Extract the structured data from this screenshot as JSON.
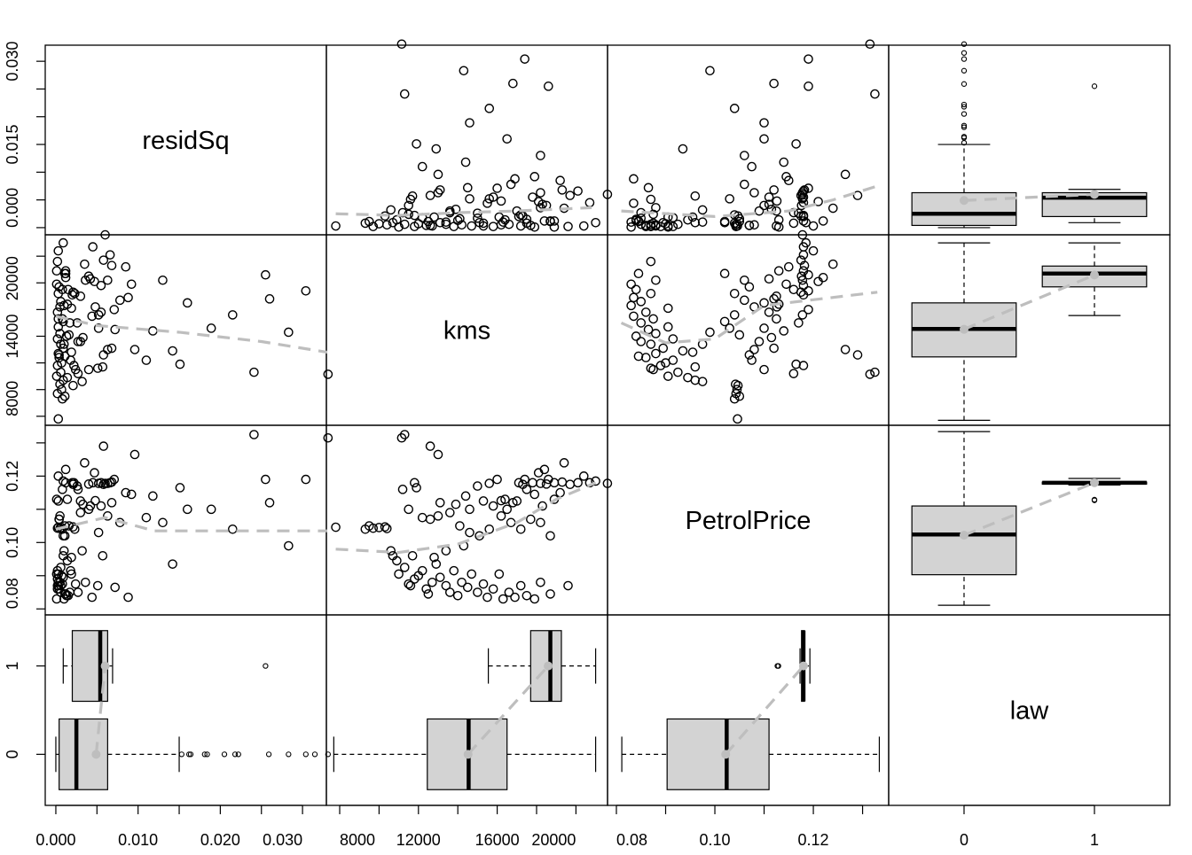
{
  "chart_data": {
    "type": "scatter",
    "variables": [
      "residSq",
      "kms",
      "PetrolPrice",
      "law"
    ],
    "diagonal_labels": [
      "residSq",
      "kms",
      "PetrolPrice",
      "law"
    ],
    "ranges": [
      [
        -0.00129,
        0.0329
      ],
      [
        7324,
        21604
      ],
      [
        0.0782,
        0.1353
      ],
      [
        -0.578,
        1.578
      ]
    ],
    "axes": [
      {
        "ticks": [
          0,
          0.005,
          0.01,
          0.015,
          0.02,
          0.025,
          0.03
        ],
        "y_labels": [
          {
            "v": 0,
            "t": "0.000"
          },
          {
            "v": 0.015,
            "t": "0.015"
          },
          {
            "v": 0.03,
            "t": "0.030"
          }
        ],
        "x_labels": [
          {
            "v": 0,
            "t": "0.000"
          },
          {
            "v": 0.01,
            "t": "0.010"
          },
          {
            "v": 0.02,
            "t": "0.020"
          },
          {
            "v": 0.03,
            "t": "0.030"
          }
        ]
      },
      {
        "ticks": [
          8000,
          10000,
          12000,
          14000,
          16000,
          18000,
          20000
        ],
        "y_labels": [
          {
            "v": 8000,
            "t": "8000"
          },
          {
            "v": 14000,
            "t": "14000"
          },
          {
            "v": 20000,
            "t": "20000"
          }
        ],
        "x_labels": [
          {
            "v": 8000,
            "t": "8000"
          },
          {
            "v": 12000,
            "t": "12000"
          },
          {
            "v": 16000,
            "t": "16000"
          },
          {
            "v": 20000,
            "t": "20000"
          }
        ]
      },
      {
        "ticks": [
          0.08,
          0.09,
          0.1,
          0.11,
          0.12,
          0.13
        ],
        "y_labels": [
          {
            "v": 0.08,
            "t": "0.08"
          },
          {
            "v": 0.1,
            "t": "0.10"
          },
          {
            "v": 0.12,
            "t": "0.12"
          }
        ],
        "x_labels": [
          {
            "v": 0.08,
            "t": "0.08"
          },
          {
            "v": 0.1,
            "t": "0.10"
          },
          {
            "v": 0.12,
            "t": "0.12"
          }
        ]
      },
      {
        "ticks": [
          0,
          1
        ],
        "y_labels": [
          {
            "v": 0,
            "t": "0"
          },
          {
            "v": 1,
            "t": "1"
          }
        ],
        "x_labels": [
          {
            "v": 0,
            "t": "0"
          },
          {
            "v": 1,
            "t": "1"
          }
        ]
      }
    ],
    "records": [
      [
        0.0003,
        7800,
        0.1046,
        0
      ],
      [
        0.0008,
        9300,
        0.104,
        0
      ],
      [
        0.0011,
        9500,
        0.105,
        0
      ],
      [
        0.0002,
        9700,
        0.1043,
        0
      ],
      [
        0.0021,
        10300,
        0.1047,
        0
      ],
      [
        0.0005,
        10400,
        0.1042,
        0
      ],
      [
        0.0032,
        10600,
        0.0975,
        0
      ],
      [
        0.0009,
        10700,
        0.096,
        0
      ],
      [
        0.0014,
        10900,
        0.0945,
        0
      ],
      [
        0.0001,
        11000,
        0.0905,
        0
      ],
      [
        0.0006,
        11300,
        0.0925,
        0
      ],
      [
        0.0024,
        11500,
        0.0875,
        0
      ],
      [
        0.0051,
        11600,
        0.087,
        0
      ],
      [
        0.0002,
        11800,
        0.089,
        0
      ],
      [
        0.0007,
        12000,
        0.09,
        0
      ],
      [
        0.0018,
        12200,
        0.0915,
        0
      ],
      [
        0.0004,
        12400,
        0.086,
        0
      ],
      [
        0.0011,
        12500,
        0.0845,
        0
      ],
      [
        0.0003,
        12700,
        0.088,
        0
      ],
      [
        0.0142,
        12900,
        0.0935,
        0
      ],
      [
        0.0009,
        13100,
        0.0895,
        0
      ],
      [
        0.0006,
        13400,
        0.087,
        0
      ],
      [
        0.0027,
        13600,
        0.085,
        0
      ],
      [
        0.0002,
        13800,
        0.0915,
        0
      ],
      [
        0.0013,
        14000,
        0.084,
        0
      ],
      [
        0.0005,
        14200,
        0.088,
        0
      ],
      [
        0.0072,
        14500,
        0.0865,
        0
      ],
      [
        0.0003,
        14700,
        0.0905,
        0
      ],
      [
        0.0017,
        15000,
        0.085,
        0
      ],
      [
        0.0008,
        15300,
        0.0875,
        0
      ],
      [
        0.0044,
        15500,
        0.0835,
        0
      ],
      [
        0.0002,
        15800,
        0.086,
        0
      ],
      [
        0.0019,
        16100,
        0.0905,
        0
      ],
      [
        0.001,
        16300,
        0.083,
        0
      ],
      [
        0.0006,
        16600,
        0.085,
        0
      ],
      [
        0.0088,
        16900,
        0.0835,
        0
      ],
      [
        0.0003,
        17200,
        0.087,
        0
      ],
      [
        0.0015,
        17500,
        0.084,
        0
      ],
      [
        0.0001,
        17900,
        0.083,
        0
      ],
      [
        0.0036,
        18200,
        0.088,
        0
      ],
      [
        0.0012,
        18700,
        0.0845,
        0
      ],
      [
        0.0241,
        11300,
        0.1325,
        0
      ],
      [
        0.0331,
        11150,
        0.1315,
        0
      ],
      [
        0.0058,
        12600,
        0.129,
        0
      ],
      [
        0.0096,
        13000,
        0.1265,
        0
      ],
      [
        0.0022,
        11800,
        0.118,
        0
      ],
      [
        0.0151,
        11900,
        0.1165,
        0
      ],
      [
        0.004,
        11500,
        0.11,
        0
      ],
      [
        0.0027,
        11200,
        0.116,
        0
      ],
      [
        0.0007,
        10000,
        0.1045,
        0
      ],
      [
        0.011,
        12200,
        0.1075,
        0
      ],
      [
        0.0063,
        13000,
        0.108,
        0
      ],
      [
        0.003,
        13600,
        0.109,
        0
      ],
      [
        0.0016,
        14100,
        0.105,
        0
      ],
      [
        0.0052,
        14600,
        0.103,
        0
      ],
      [
        0.0009,
        15100,
        0.102,
        0
      ],
      [
        0.0215,
        15600,
        0.104,
        0
      ],
      [
        0.0005,
        16200,
        0.108,
        0
      ],
      [
        0.0078,
        16700,
        0.106,
        0
      ],
      [
        0.0023,
        17200,
        0.104,
        0
      ],
      [
        0.0004,
        17700,
        0.107,
        0
      ],
      [
        0.013,
        18200,
        0.106,
        0
      ],
      [
        0.0011,
        18700,
        0.102,
        0
      ],
      [
        0.0068,
        13100,
        0.112,
        0
      ],
      [
        0.0033,
        13900,
        0.1115,
        0
      ],
      [
        0.0189,
        14600,
        0.11,
        0
      ],
      [
        0.0003,
        15300,
        0.1125,
        0
      ],
      [
        0.0055,
        15800,
        0.111,
        0
      ],
      [
        0.0014,
        16400,
        0.113,
        0
      ],
      [
        0.026,
        16800,
        0.112,
        0
      ],
      [
        0.002,
        17100,
        0.118,
        0
      ],
      [
        0.0008,
        17500,
        0.116,
        0
      ],
      [
        0.0092,
        17900,
        0.1145,
        0
      ],
      [
        0.0042,
        18300,
        0.111,
        0
      ],
      [
        0.0001,
        18900,
        0.113,
        0
      ],
      [
        0.0118,
        14400,
        0.114,
        0
      ],
      [
        0.0026,
        15000,
        0.117,
        0
      ],
      [
        0.0071,
        16000,
        0.119,
        0
      ],
      [
        0.0304,
        17400,
        0.119,
        0
      ],
      [
        0.0047,
        18100,
        0.121,
        0
      ],
      [
        0.0012,
        18400,
        0.122,
        0
      ],
      [
        0.0085,
        19200,
        0.115,
        0
      ],
      [
        0.0035,
        19400,
        0.124,
        0
      ],
      [
        0.016,
        16500,
        0.11,
        0
      ],
      [
        0.0004,
        12600,
        0.107,
        0
      ],
      [
        0.0057,
        11700,
        0.096,
        0
      ],
      [
        0.0019,
        12800,
        0.0955,
        0
      ],
      [
        0.001,
        13400,
        0.0975,
        0
      ],
      [
        0.0283,
        14300,
        0.099,
        0
      ],
      [
        0.0002,
        19600,
        0.087,
        0
      ],
      [
        0.0003,
        20400,
        0.12,
        0
      ],
      [
        0.0045,
        20700,
        0.118,
        0
      ],
      [
        0.0021,
        17300,
        0.1175,
        1
      ],
      [
        0.0055,
        17800,
        0.118,
        1
      ],
      [
        0.0063,
        18200,
        0.1178,
        1
      ],
      [
        0.004,
        18500,
        0.1176,
        1
      ],
      [
        0.0012,
        18900,
        0.118,
        1
      ],
      [
        0.0068,
        19300,
        0.1182,
        1
      ],
      [
        0.0058,
        19700,
        0.1175,
        1
      ],
      [
        0.0255,
        18600,
        0.119,
        1
      ],
      [
        0.003,
        17000,
        0.1125,
        1
      ],
      [
        0.0048,
        16200,
        0.1126,
        1
      ],
      [
        0.0066,
        20100,
        0.118,
        1
      ],
      [
        0.0009,
        21000,
        0.1185,
        1
      ],
      [
        0.006,
        21600,
        0.1178,
        1
      ],
      [
        0.0052,
        15600,
        0.1178,
        1
      ]
    ],
    "smoothers": {
      "0-1": [
        [
          7800,
          0.0025
        ],
        [
          11000,
          0.0022
        ],
        [
          14000,
          0.0027
        ],
        [
          17000,
          0.003
        ],
        [
          20800,
          0.0036
        ]
      ],
      "0-2": [
        [
          0.081,
          0.003
        ],
        [
          0.1,
          0.002
        ],
        [
          0.115,
          0.003
        ],
        [
          0.124,
          0.005
        ],
        [
          0.133,
          0.0075
        ]
      ],
      "1-0": [
        [
          0,
          15500
        ],
        [
          0.005,
          14800
        ],
        [
          0.015,
          14300
        ],
        [
          0.025,
          13600
        ],
        [
          0.033,
          12800
        ]
      ],
      "1-2": [
        [
          0.081,
          15000
        ],
        [
          0.09,
          13500
        ],
        [
          0.1,
          13800
        ],
        [
          0.11,
          16300
        ],
        [
          0.133,
          17300
        ]
      ],
      "2-0": [
        [
          0,
          0.104
        ],
        [
          0.006,
          0.1075
        ],
        [
          0.012,
          0.1035
        ],
        [
          0.033,
          0.1035
        ]
      ],
      "2-1": [
        [
          7800,
          0.098
        ],
        [
          11000,
          0.097
        ],
        [
          14000,
          0.0995
        ],
        [
          17000,
          0.106
        ],
        [
          19000,
          0.113
        ],
        [
          21000,
          0.118
        ]
      ]
    },
    "boxplots_by_law": [
      {
        "variable": "residSq",
        "groups": [
          {
            "law": 0,
            "lo": 0.0,
            "q1": 0.0004,
            "med": 0.0025,
            "q3": 0.0063,
            "hi": 0.015,
            "mean": 0.0049,
            "outliers": [
              0.0153,
              0.0162,
              0.0164,
              0.0181,
              0.0184,
              0.0205,
              0.0218,
              0.0222,
              0.0259,
              0.0283,
              0.0304,
              0.0315,
              0.0331
            ]
          },
          {
            "law": 1,
            "lo": 0.0009,
            "q1": 0.002,
            "med": 0.0054,
            "q3": 0.0063,
            "hi": 0.0069,
            "mean": 0.006,
            "outliers": [
              0.0255
            ]
          }
        ]
      },
      {
        "variable": "kms",
        "groups": [
          {
            "law": 0,
            "lo": 7700,
            "q1": 12450,
            "med": 14550,
            "q3": 16500,
            "hi": 21000,
            "mean": 14520,
            "outliers": []
          },
          {
            "law": 1,
            "lo": 15550,
            "q1": 17700,
            "med": 18700,
            "q3": 19260,
            "hi": 21000,
            "mean": 18590,
            "outliers": []
          }
        ]
      },
      {
        "variable": "PetrolPrice",
        "groups": [
          {
            "law": 0,
            "lo": 0.0811,
            "q1": 0.0903,
            "med": 0.1024,
            "q3": 0.111,
            "hi": 0.1334,
            "mean": 0.1022,
            "outliers": []
          },
          {
            "law": 1,
            "lo": 0.1173,
            "q1": 0.1176,
            "med": 0.118,
            "q3": 0.1182,
            "hi": 0.1193,
            "mean": 0.118,
            "outliers": [
              0.1127,
              0.1129
            ]
          }
        ]
      }
    ],
    "colors": {
      "points": "#000000",
      "box_fill": "#d3d3d3",
      "smoother": "#bebebe"
    }
  }
}
